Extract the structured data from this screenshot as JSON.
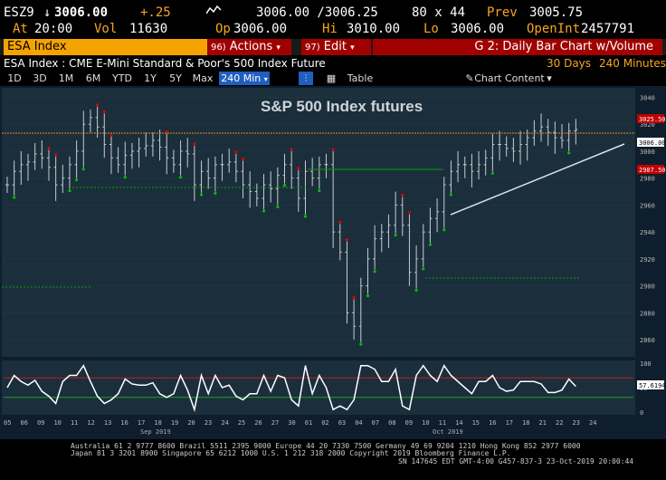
{
  "quote": {
    "ticker": "ESZ9",
    "last": "3006.00",
    "change": "+.25",
    "bid_ask": "3006.00 /3006.25",
    "size": "80 x 44",
    "prev_label": "Prev",
    "prev": "3005.75",
    "at_label": "At",
    "at_time": "20:00",
    "vol_label": "Vol",
    "vol": "11630",
    "op_label": "Op",
    "op": "3006.00",
    "hi_label": "Hi",
    "hi": "3010.00",
    "lo_label": "Lo",
    "lo": "3006.00",
    "openint_label": "OpenInt",
    "openint": "2457791"
  },
  "toolbar": {
    "security": "ESA Index",
    "actions": "Actions",
    "actions_num": "96)",
    "edit": "Edit",
    "edit_num": "97)",
    "chart_title": "G 2: Daily Bar Chart w/Volume"
  },
  "subheader": {
    "description": "ESA Index : CME E-Mini Standard & Poor's 500 Index Future",
    "range": "30 Days",
    "period": "240 Minutes"
  },
  "tabs": [
    "1D",
    "3D",
    "1M",
    "6M",
    "YTD",
    "1Y",
    "5Y",
    "Max",
    "240 Min"
  ],
  "table_label": "Table",
  "chart_content_label": "Chart Content",
  "colors": {
    "accent": "#f5a300",
    "panel": "#1a2a38",
    "up": "#00c000",
    "down": "#e00000",
    "trend": "#ffffff"
  },
  "chart_data": {
    "type": "bar",
    "title": "S&P 500 Index futures",
    "yticks": [
      3040,
      3020,
      3000,
      2980,
      2960,
      2940,
      2920,
      2900,
      2880,
      2860
    ],
    "ylim": [
      2850,
      3045
    ],
    "price_labels": {
      "last": "3006.00",
      "hi": "3025.50",
      "lo": "2987.50"
    },
    "closes": [
      2975,
      2985,
      2990,
      2992,
      2998,
      2995,
      2988,
      2975,
      2980,
      2990,
      3000,
      3020,
      3025,
      3018,
      3005,
      2995,
      2990,
      2997,
      3000,
      3002,
      3004,
      3008,
      3003,
      2995,
      2990,
      3000,
      2998,
      2975,
      2985,
      2980,
      2990,
      2990,
      2992,
      2985,
      2975,
      2970,
      2965,
      2975,
      2972,
      2982,
      2990,
      2980,
      2965,
      2985,
      2980,
      2990,
      2990,
      2940,
      2925,
      2880,
      2870,
      2900,
      2920,
      2935,
      2940,
      2945,
      2960,
      2945,
      2910,
      2920,
      2940,
      2950,
      2955,
      2975,
      2985,
      2990,
      2990,
      2985,
      2990,
      2995,
      3005,
      3005,
      3002,
      3000,
      3005,
      3010,
      3015,
      3018,
      3014,
      3010,
      3008,
      3015,
      3016
    ],
    "oscillator": {
      "value": "57.6194",
      "yticks": [
        100,
        50,
        0
      ]
    },
    "xticks": [
      "05",
      "06",
      "09",
      "10",
      "11",
      "12",
      "13",
      "16",
      "17",
      "18",
      "19",
      "20",
      "23",
      "24",
      "25",
      "26",
      "27",
      "30",
      "01",
      "02",
      "03",
      "04",
      "07",
      "08",
      "09",
      "10",
      "11",
      "14",
      "15",
      "16",
      "17",
      "18",
      "21",
      "22",
      "23",
      "24"
    ],
    "month_labels": [
      "Sep 2019",
      "Oct 2019"
    ]
  },
  "footer": {
    "line1": "Australia 61 2 9777 8600  Brazil 5511 2395 9000  Europe 44 20 7330 7500  Germany 49 69 9204 1210  Hong Kong 852 2977 6000",
    "line2": "Japan 81 3 3201 8900        Singapore 65 6212 1000        U.S. 1 212 318 2000        Copyright 2019 Bloomberg Finance L.P.",
    "line3": "SN 147645 EDT  GMT-4:00 G457-837-3  23-Oct-2019  20:00:44"
  }
}
